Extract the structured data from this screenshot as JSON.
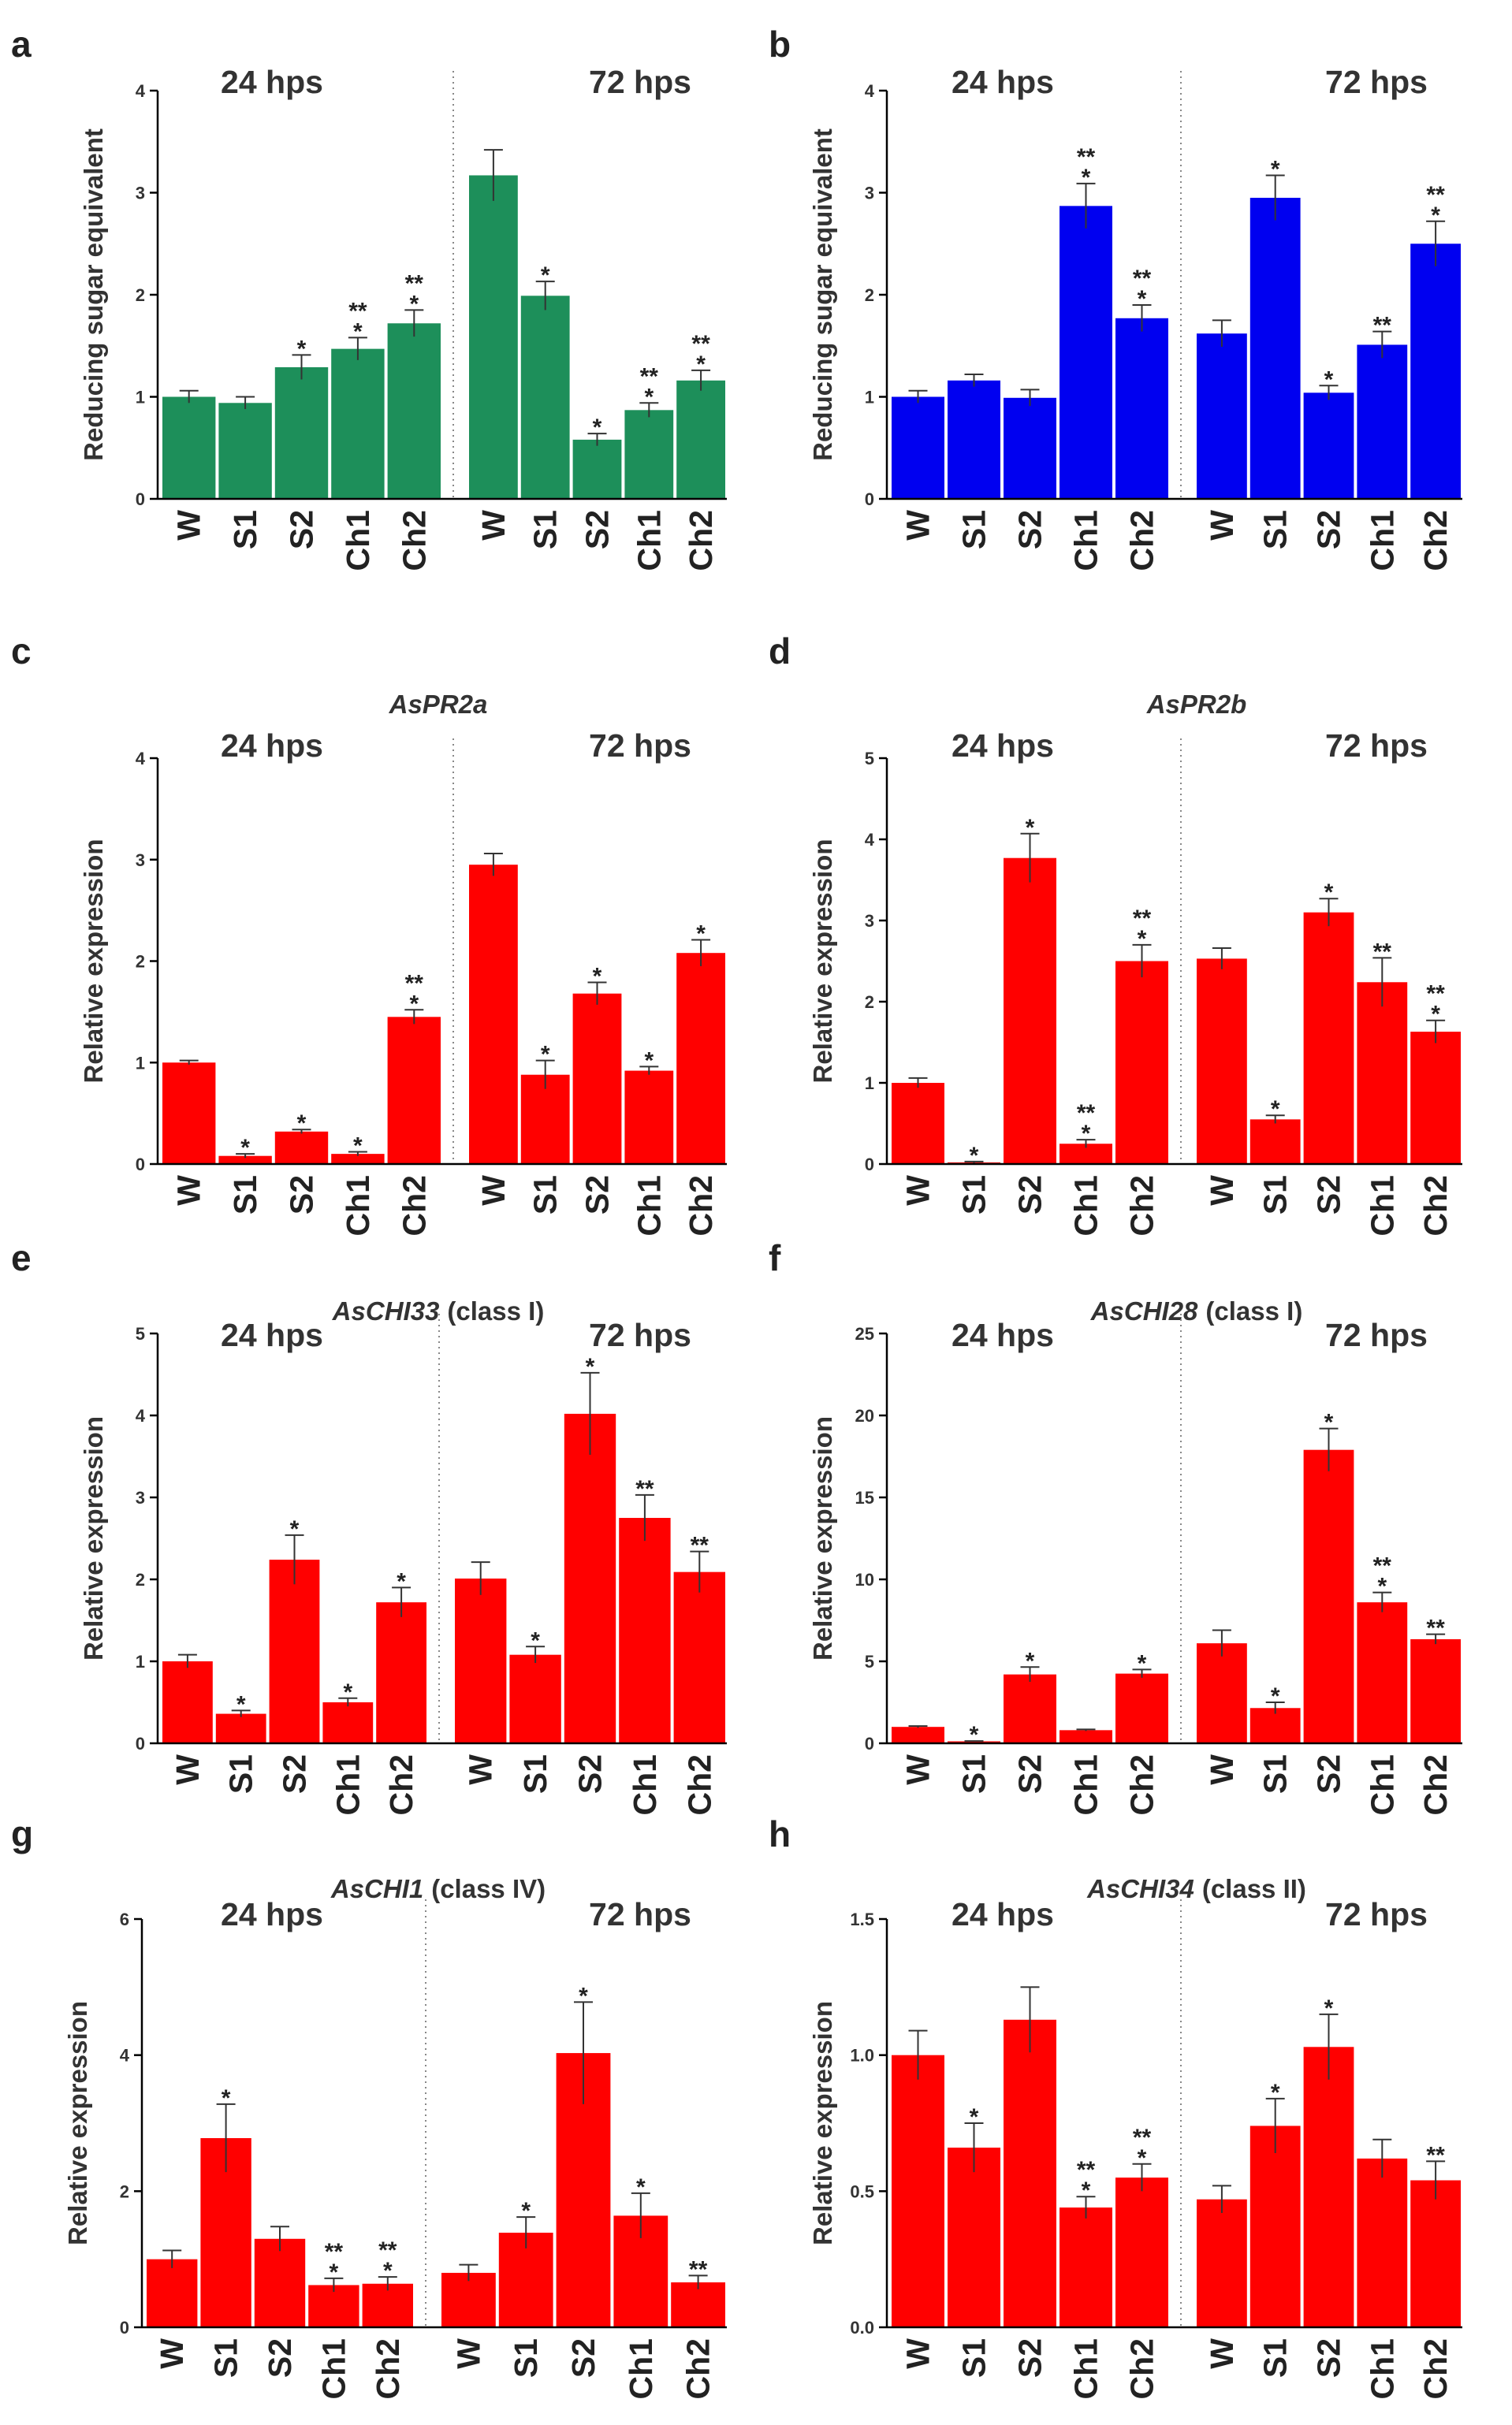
{
  "figure": {
    "panels": [
      {
        "letter": "a",
        "title": null,
        "title_suffix": null,
        "ylabel": "Reducing sugar equivalent",
        "ymax": 4,
        "yticks": [
          "0",
          "1",
          "2",
          "3",
          "4"
        ],
        "time_labels": [
          "24 hps",
          "72 hps"
        ],
        "color": "#1d8f5a"
      },
      {
        "letter": "b",
        "title": null,
        "title_suffix": null,
        "ylabel": "Reducing sugar equivalent",
        "ymax": 4,
        "yticks": [
          "0",
          "1",
          "2",
          "3",
          "4"
        ],
        "time_labels": [
          "24 hps",
          "72 hps"
        ],
        "color": "#0000f0"
      },
      {
        "letter": "c",
        "title": "AsPR2a",
        "title_suffix": null,
        "ylabel": "Relative expression",
        "ymax": 4,
        "yticks": [
          "0",
          "1",
          "2",
          "3",
          "4"
        ],
        "time_labels": [
          "24 hps",
          "72 hps"
        ],
        "color": "#ff0000"
      },
      {
        "letter": "d",
        "title": "AsPR2b",
        "title_suffix": null,
        "ylabel": "Relative expression",
        "ymax": 5,
        "yticks": [
          "0",
          "1",
          "2",
          "3",
          "4",
          "5"
        ],
        "time_labels": [
          "24 hps",
          "72 hps"
        ],
        "color": "#ff0000"
      },
      {
        "letter": "e",
        "title": "AsCHI33",
        "title_suffix": "(class I)",
        "ylabel": "Relative expression",
        "ymax": 5,
        "yticks": [
          "0",
          "1",
          "2",
          "3",
          "4",
          "5"
        ],
        "time_labels": [
          "24 hps",
          "72 hps"
        ],
        "color": "#ff0000"
      },
      {
        "letter": "f",
        "title": "AsCHI28",
        "title_suffix": "(class I)",
        "ylabel": "Relative expression",
        "ymax": 25,
        "yticks": [
          "0",
          "5",
          "10",
          "15",
          "20",
          "25"
        ],
        "time_labels": [
          "24 hps",
          "72 hps"
        ],
        "color": "#ff0000"
      },
      {
        "letter": "g",
        "title": "AsCHI1",
        "title_suffix": "(class IV)",
        "ylabel": "Relative expression",
        "ymax": 6,
        "yticks": [
          "0",
          "2",
          "4",
          "6"
        ],
        "time_labels": [
          "24 hps",
          "72 hps"
        ],
        "color": "#ff0000"
      },
      {
        "letter": "h",
        "title": "AsCHI34",
        "title_suffix": "(class II)",
        "ylabel": "Relative expression",
        "ymax": 1.5,
        "yticks": [
          "0.0",
          "0.5",
          "1.0",
          "1.5"
        ],
        "time_labels": [
          "24 hps",
          "72 hps"
        ],
        "color": "#ff0000"
      }
    ]
  },
  "chart_data": [
    {
      "panel": "a",
      "type": "bar",
      "ylabel": "Reducing sugar equivalent",
      "ylim": [
        0,
        4
      ],
      "categories": [
        "W",
        "S1",
        "S2",
        "Ch1",
        "Ch2",
        "W",
        "S1",
        "S2",
        "Ch1",
        "Ch2"
      ],
      "groups": [
        "24 hps",
        "24 hps",
        "24 hps",
        "24 hps",
        "24 hps",
        "72 hps",
        "72 hps",
        "72 hps",
        "72 hps",
        "72 hps"
      ],
      "values": [
        1.0,
        0.94,
        1.29,
        1.47,
        1.72,
        3.17,
        1.99,
        0.58,
        0.87,
        1.16
      ],
      "errors": [
        0.06,
        0.06,
        0.12,
        0.11,
        0.13,
        0.25,
        0.14,
        0.06,
        0.07,
        0.1
      ],
      "significance": [
        "",
        "",
        "*",
        "**\n*",
        "**\n*",
        "",
        "*",
        "*",
        "**\n*",
        "**\n*"
      ]
    },
    {
      "panel": "b",
      "type": "bar",
      "ylabel": "Reducing sugar equivalent",
      "ylim": [
        0,
        4
      ],
      "categories": [
        "W",
        "S1",
        "S2",
        "Ch1",
        "Ch2",
        "W",
        "S1",
        "S2",
        "Ch1",
        "Ch2"
      ],
      "groups": [
        "24 hps",
        "24 hps",
        "24 hps",
        "24 hps",
        "24 hps",
        "72 hps",
        "72 hps",
        "72 hps",
        "72 hps",
        "72 hps"
      ],
      "values": [
        1.0,
        1.16,
        0.99,
        2.87,
        1.77,
        1.62,
        2.95,
        1.04,
        1.51,
        2.5
      ],
      "errors": [
        0.06,
        0.06,
        0.08,
        0.22,
        0.13,
        0.13,
        0.22,
        0.07,
        0.13,
        0.22
      ],
      "significance": [
        "",
        "",
        "",
        "**\n*",
        "**\n*",
        "",
        "*",
        "*",
        "**",
        "**\n*"
      ]
    },
    {
      "panel": "c",
      "type": "bar",
      "title": "AsPR2a",
      "ylabel": "Relative expression",
      "ylim": [
        0,
        4
      ],
      "categories": [
        "W",
        "S1",
        "S2",
        "Ch1",
        "Ch2",
        "W",
        "S1",
        "S2",
        "Ch1",
        "Ch2"
      ],
      "groups": [
        "24 hps",
        "24 hps",
        "24 hps",
        "24 hps",
        "24 hps",
        "72 hps",
        "72 hps",
        "72 hps",
        "72 hps",
        "72 hps"
      ],
      "values": [
        1.0,
        0.08,
        0.32,
        0.1,
        1.45,
        2.95,
        0.88,
        1.68,
        0.92,
        2.08
      ],
      "errors": [
        0.02,
        0.02,
        0.02,
        0.02,
        0.07,
        0.11,
        0.14,
        0.11,
        0.04,
        0.13
      ],
      "significance": [
        "",
        "*",
        "*",
        "*",
        "**\n*",
        "",
        "*",
        "*",
        "*",
        "*"
      ]
    },
    {
      "panel": "d",
      "type": "bar",
      "title": "AsPR2b",
      "ylabel": "Relative expression",
      "ylim": [
        0,
        5
      ],
      "categories": [
        "W",
        "S1",
        "S2",
        "Ch1",
        "Ch2",
        "W",
        "S1",
        "S2",
        "Ch1",
        "Ch2"
      ],
      "groups": [
        "24 hps",
        "24 hps",
        "24 hps",
        "24 hps",
        "24 hps",
        "72 hps",
        "72 hps",
        "72 hps",
        "72 hps",
        "72 hps"
      ],
      "values": [
        1.0,
        0.02,
        3.77,
        0.25,
        2.5,
        2.53,
        0.55,
        3.1,
        2.24,
        1.63
      ],
      "errors": [
        0.06,
        0.01,
        0.3,
        0.05,
        0.2,
        0.13,
        0.05,
        0.17,
        0.3,
        0.14
      ],
      "significance": [
        "",
        "*",
        "*",
        "**\n*",
        "**\n*",
        "",
        "*",
        "*",
        "**",
        "**\n*"
      ]
    },
    {
      "panel": "e",
      "type": "bar",
      "title": "AsCHI33 (class I)",
      "ylabel": "Relative expression",
      "ylim": [
        0,
        5
      ],
      "categories": [
        "W",
        "S1",
        "S2",
        "Ch1",
        "Ch2",
        "W",
        "S1",
        "S2",
        "Ch1",
        "Ch2"
      ],
      "groups": [
        "24 hps",
        "24 hps",
        "24 hps",
        "24 hps",
        "24 hps",
        "72 hps",
        "72 hps",
        "72 hps",
        "72 hps",
        "72 hps"
      ],
      "values": [
        1.0,
        0.36,
        2.24,
        0.5,
        1.72,
        2.01,
        1.08,
        4.02,
        2.75,
        2.09
      ],
      "errors": [
        0.08,
        0.04,
        0.3,
        0.05,
        0.18,
        0.2,
        0.1,
        0.5,
        0.28,
        0.25
      ],
      "significance": [
        "",
        "*",
        "*",
        "*",
        "*",
        "",
        "*",
        "*",
        "**",
        "**"
      ]
    },
    {
      "panel": "f",
      "type": "bar",
      "title": "AsCHI28 (class I)",
      "ylabel": "Relative expression",
      "ylim": [
        0,
        25
      ],
      "categories": [
        "W",
        "S1",
        "S2",
        "Ch1",
        "Ch2",
        "W",
        "S1",
        "S2",
        "Ch1",
        "Ch2"
      ],
      "groups": [
        "24 hps",
        "24 hps",
        "24 hps",
        "24 hps",
        "24 hps",
        "72 hps",
        "72 hps",
        "72 hps",
        "72 hps",
        "72 hps"
      ],
      "values": [
        1.0,
        0.12,
        4.2,
        0.8,
        4.25,
        6.1,
        2.15,
        17.9,
        8.6,
        6.35
      ],
      "errors": [
        0.05,
        0.02,
        0.45,
        0.05,
        0.25,
        0.8,
        0.35,
        1.3,
        0.6,
        0.3
      ],
      "significance": [
        "",
        "*",
        "*",
        "",
        "*",
        "",
        "*",
        "*",
        "**\n*",
        "**"
      ]
    },
    {
      "panel": "g",
      "type": "bar",
      "title": "AsCHI1 (class IV)",
      "ylabel": "Relative expression",
      "ylim": [
        0,
        6
      ],
      "categories": [
        "W",
        "S1",
        "S2",
        "Ch1",
        "Ch2",
        "W",
        "S1",
        "S2",
        "Ch1",
        "Ch2"
      ],
      "groups": [
        "24 hps",
        "24 hps",
        "24 hps",
        "24 hps",
        "24 hps",
        "72 hps",
        "72 hps",
        "72 hps",
        "72 hps",
        "72 hps"
      ],
      "values": [
        1.0,
        2.78,
        1.3,
        0.62,
        0.64,
        0.8,
        1.39,
        4.03,
        1.64,
        0.66
      ],
      "errors": [
        0.13,
        0.5,
        0.18,
        0.1,
        0.1,
        0.12,
        0.23,
        0.75,
        0.33,
        0.1
      ],
      "significance": [
        "",
        "*",
        "",
        "**\n*",
        "**\n*",
        "",
        "*",
        "*",
        "*",
        "**"
      ]
    },
    {
      "panel": "h",
      "type": "bar",
      "title": "AsCHI34 (class II)",
      "ylabel": "Relative expression",
      "ylim": [
        0,
        1.5
      ],
      "categories": [
        "W",
        "S1",
        "S2",
        "Ch1",
        "Ch2",
        "W",
        "S1",
        "S2",
        "Ch1",
        "Ch2"
      ],
      "groups": [
        "24 hps",
        "24 hps",
        "24 hps",
        "24 hps",
        "24 hps",
        "72 hps",
        "72 hps",
        "72 hps",
        "72 hps",
        "72 hps"
      ],
      "values": [
        1.0,
        0.66,
        1.13,
        0.44,
        0.55,
        0.47,
        0.74,
        1.03,
        0.62,
        0.54
      ],
      "errors": [
        0.09,
        0.09,
        0.12,
        0.04,
        0.05,
        0.05,
        0.1,
        0.12,
        0.07,
        0.07
      ],
      "significance": [
        "",
        "*",
        "",
        "**\n*",
        "**\n*",
        "",
        "*",
        "*",
        "",
        "**"
      ]
    }
  ]
}
